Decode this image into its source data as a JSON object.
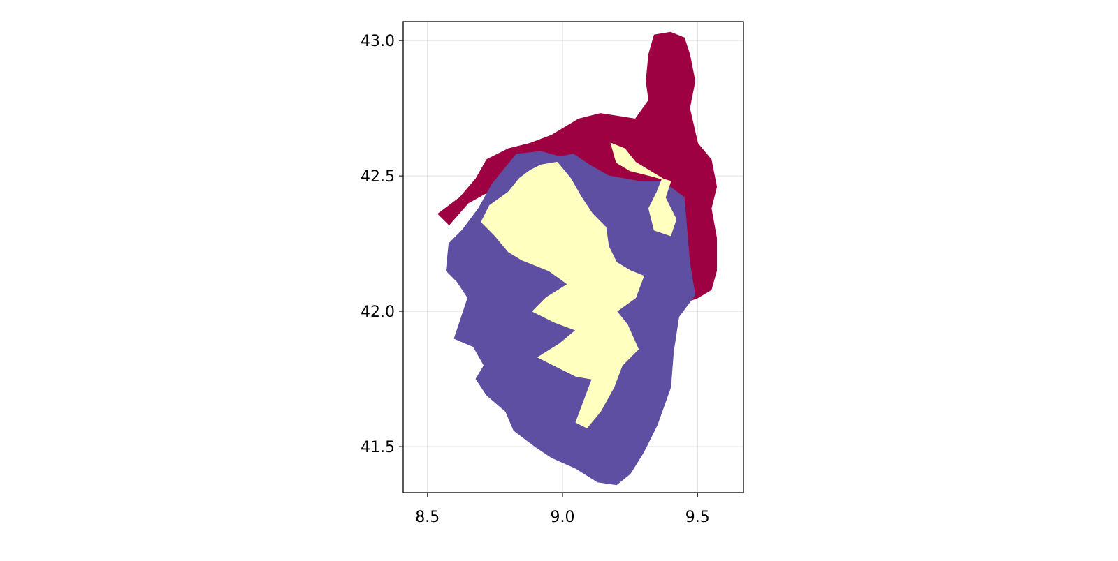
{
  "chart_data": {
    "type": "heatmap",
    "title": "",
    "xlabel": "",
    "ylabel": "",
    "xlim": [
      8.41,
      9.67
    ],
    "ylim": [
      41.33,
      43.07
    ],
    "grid": true,
    "legend": "none",
    "x_ticks": [
      {
        "value": 8.5,
        "label": "8.5"
      },
      {
        "value": 9.0,
        "label": "9.0"
      },
      {
        "value": 9.5,
        "label": "9.5"
      }
    ],
    "y_ticks": [
      {
        "value": 41.5,
        "label": "41.5"
      },
      {
        "value": 42.0,
        "label": "42.0"
      },
      {
        "value": 42.5,
        "label": "42.5"
      },
      {
        "value": 43.0,
        "label": "43.0"
      }
    ],
    "classes": [
      {
        "color": "#9e0142"
      },
      {
        "color": "#5e4fa2"
      },
      {
        "color": "#ffffbf"
      }
    ],
    "regions": [
      {
        "class": 0,
        "polygon": [
          [
            9.34,
            43.02
          ],
          [
            9.4,
            43.03
          ],
          [
            9.45,
            43.01
          ],
          [
            9.47,
            42.95
          ],
          [
            9.49,
            42.85
          ],
          [
            9.47,
            42.75
          ],
          [
            9.5,
            42.62
          ],
          [
            9.55,
            42.56
          ],
          [
            9.57,
            42.46
          ],
          [
            9.55,
            42.38
          ],
          [
            9.57,
            42.27
          ],
          [
            9.57,
            42.15
          ],
          [
            9.55,
            42.08
          ],
          [
            9.5,
            42.05
          ],
          [
            9.42,
            42.02
          ],
          [
            9.38,
            42.08
          ],
          [
            9.34,
            42.22
          ],
          [
            9.28,
            42.35
          ],
          [
            9.2,
            42.45
          ],
          [
            9.05,
            42.52
          ],
          [
            8.92,
            42.55
          ],
          [
            8.82,
            42.52
          ],
          [
            8.74,
            42.45
          ],
          [
            8.65,
            42.4
          ],
          [
            8.58,
            42.32
          ],
          [
            8.54,
            42.36
          ],
          [
            8.62,
            42.42
          ],
          [
            8.68,
            42.49
          ],
          [
            8.72,
            42.56
          ],
          [
            8.8,
            42.6
          ],
          [
            8.88,
            42.62
          ],
          [
            8.96,
            42.65
          ],
          [
            9.06,
            42.71
          ],
          [
            9.14,
            42.73
          ],
          [
            9.27,
            42.71
          ],
          [
            9.32,
            42.78
          ],
          [
            9.31,
            42.85
          ],
          [
            9.32,
            42.95
          ]
        ]
      },
      {
        "class": 1,
        "polygon": [
          [
            8.83,
            42.58
          ],
          [
            8.92,
            42.59
          ],
          [
            8.99,
            42.57
          ],
          [
            9.04,
            42.58
          ],
          [
            9.1,
            42.54
          ],
          [
            9.17,
            42.5
          ],
          [
            9.28,
            42.48
          ],
          [
            9.37,
            42.48
          ],
          [
            9.45,
            42.42
          ],
          [
            9.46,
            42.3
          ],
          [
            9.47,
            42.18
          ],
          [
            9.49,
            42.06
          ],
          [
            9.43,
            41.98
          ],
          [
            9.41,
            41.85
          ],
          [
            9.4,
            41.72
          ],
          [
            9.35,
            41.58
          ],
          [
            9.3,
            41.48
          ],
          [
            9.25,
            41.4
          ],
          [
            9.2,
            41.36
          ],
          [
            9.13,
            41.37
          ],
          [
            9.05,
            41.42
          ],
          [
            8.96,
            41.46
          ],
          [
            8.9,
            41.5
          ],
          [
            8.82,
            41.56
          ],
          [
            8.79,
            41.63
          ],
          [
            8.72,
            41.69
          ],
          [
            8.68,
            41.75
          ],
          [
            8.71,
            41.8
          ],
          [
            8.67,
            41.87
          ],
          [
            8.6,
            41.9
          ],
          [
            8.62,
            41.96
          ],
          [
            8.65,
            42.05
          ],
          [
            8.61,
            42.11
          ],
          [
            8.57,
            42.15
          ],
          [
            8.58,
            42.25
          ],
          [
            8.63,
            42.3
          ],
          [
            8.69,
            42.38
          ],
          [
            8.74,
            42.47
          ]
        ]
      },
      {
        "class": 2,
        "polygon": [
          [
            8.92,
            42.54
          ],
          [
            8.98,
            42.55
          ],
          [
            9.03,
            42.49
          ],
          [
            9.07,
            42.42
          ],
          [
            9.11,
            42.36
          ],
          [
            9.16,
            42.31
          ],
          [
            9.17,
            42.24
          ],
          [
            9.2,
            42.18
          ],
          [
            9.25,
            42.15
          ],
          [
            9.3,
            42.13
          ],
          [
            9.27,
            42.05
          ],
          [
            9.2,
            42.0
          ],
          [
            9.24,
            41.95
          ],
          [
            9.28,
            41.86
          ],
          [
            9.22,
            41.8
          ],
          [
            9.19,
            41.72
          ],
          [
            9.14,
            41.63
          ],
          [
            9.09,
            41.57
          ],
          [
            9.05,
            41.59
          ],
          [
            9.08,
            41.67
          ],
          [
            9.11,
            41.75
          ],
          [
            9.05,
            41.76
          ],
          [
            8.97,
            41.8
          ],
          [
            8.91,
            41.83
          ],
          [
            8.99,
            41.88
          ],
          [
            9.05,
            41.93
          ],
          [
            8.97,
            41.96
          ],
          [
            8.89,
            42.0
          ],
          [
            8.94,
            42.05
          ],
          [
            9.02,
            42.1
          ],
          [
            8.95,
            42.15
          ],
          [
            8.85,
            42.19
          ],
          [
            8.8,
            42.22
          ],
          [
            8.75,
            42.28
          ],
          [
            8.7,
            42.33
          ],
          [
            8.73,
            42.39
          ],
          [
            8.8,
            42.44
          ],
          [
            8.84,
            42.49
          ],
          [
            8.88,
            42.52
          ]
        ]
      },
      {
        "class": 2,
        "polygon": [
          [
            9.18,
            42.62
          ],
          [
            9.23,
            42.6
          ],
          [
            9.27,
            42.55
          ],
          [
            9.32,
            42.52
          ],
          [
            9.37,
            42.49
          ],
          [
            9.35,
            42.44
          ],
          [
            9.32,
            42.38
          ],
          [
            9.34,
            42.3
          ],
          [
            9.4,
            42.28
          ],
          [
            9.42,
            42.34
          ],
          [
            9.38,
            42.42
          ],
          [
            9.4,
            42.48
          ],
          [
            9.33,
            42.5
          ],
          [
            9.25,
            42.52
          ],
          [
            9.2,
            42.55
          ]
        ]
      }
    ]
  }
}
